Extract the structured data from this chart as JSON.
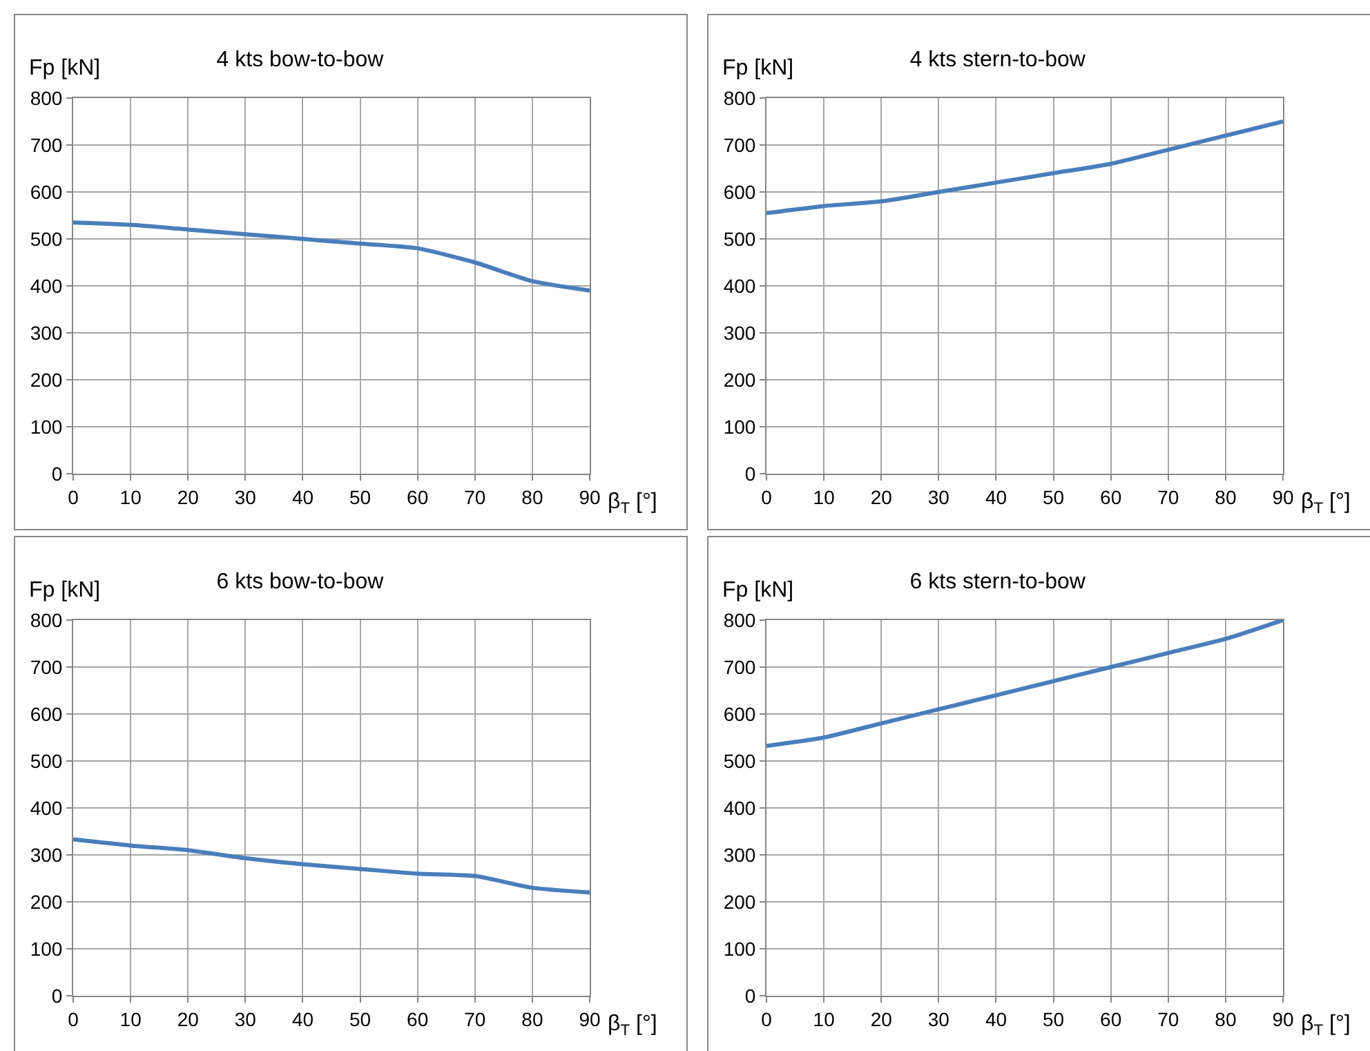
{
  "chart_data": [
    {
      "type": "line",
      "title": "4 kts bow-to-bow",
      "xlabel": "β$_{T}$ [°]",
      "ylabel": "Fp [kN]",
      "x": [
        0,
        10,
        20,
        30,
        40,
        50,
        60,
        70,
        80,
        90
      ],
      "series": [
        {
          "color": "#4a7ebb",
          "values": [
            535,
            530,
            520,
            510,
            500,
            490,
            480,
            450,
            410,
            390
          ]
        }
      ],
      "xlim": [
        0,
        90
      ],
      "xticks": [
        0,
        10,
        20,
        30,
        40,
        50,
        60,
        70,
        80,
        90
      ],
      "ylim": [
        0,
        800
      ],
      "yticks": [
        0,
        100,
        200,
        300,
        400,
        500,
        600,
        700,
        800
      ],
      "grid": true,
      "marker": "none",
      "line_style": "solid"
    },
    {
      "type": "line",
      "title": "4 kts stern-to-bow",
      "xlabel": "β$_{T}$ [°]",
      "ylabel": "Fp [kN]",
      "x": [
        0,
        10,
        20,
        30,
        40,
        50,
        60,
        70,
        80,
        90
      ],
      "series": [
        {
          "color": "#4a7ebb",
          "values": [
            555,
            570,
            580,
            600,
            620,
            640,
            660,
            690,
            720,
            750
          ]
        }
      ],
      "xlim": [
        0,
        90
      ],
      "xticks": [
        0,
        10,
        20,
        30,
        40,
        50,
        60,
        70,
        80,
        90
      ],
      "ylim": [
        0,
        800
      ],
      "yticks": [
        0,
        100,
        200,
        300,
        400,
        500,
        600,
        700,
        800
      ],
      "grid": true,
      "marker": "none",
      "line_style": "solid"
    },
    {
      "type": "line",
      "title": "6 kts bow-to-bow",
      "xlabel": "β$_{T}$ [°]",
      "ylabel": "Fp [kN]",
      "x": [
        0,
        10,
        20,
        30,
        40,
        50,
        60,
        70,
        80,
        90
      ],
      "series": [
        {
          "color": "#4a7ebb",
          "values": [
            333,
            320,
            310,
            293,
            280,
            270,
            260,
            255,
            230,
            220
          ]
        }
      ],
      "xlim": [
        0,
        90
      ],
      "xticks": [
        0,
        10,
        20,
        30,
        40,
        50,
        60,
        70,
        80,
        90
      ],
      "ylim": [
        0,
        800
      ],
      "yticks": [
        0,
        100,
        200,
        300,
        400,
        500,
        600,
        700,
        800
      ],
      "grid": true,
      "marker": "none",
      "line_style": "solid"
    },
    {
      "type": "line",
      "title": "6 kts stern-to-bow",
      "xlabel": "β$_{T}$ [°]",
      "ylabel": "Fp [kN]",
      "x": [
        0,
        10,
        20,
        30,
        40,
        50,
        60,
        70,
        80,
        90
      ],
      "series": [
        {
          "color": "#4a7ebb",
          "values": [
            532,
            550,
            580,
            610,
            640,
            670,
            700,
            730,
            760,
            800
          ]
        }
      ],
      "xlim": [
        0,
        90
      ],
      "xticks": [
        0,
        10,
        20,
        30,
        40,
        50,
        60,
        70,
        80,
        90
      ],
      "ylim": [
        0,
        800
      ],
      "yticks": [
        0,
        100,
        200,
        300,
        400,
        500,
        600,
        700,
        800
      ],
      "grid": true,
      "marker": "none",
      "line_style": "solid"
    }
  ]
}
